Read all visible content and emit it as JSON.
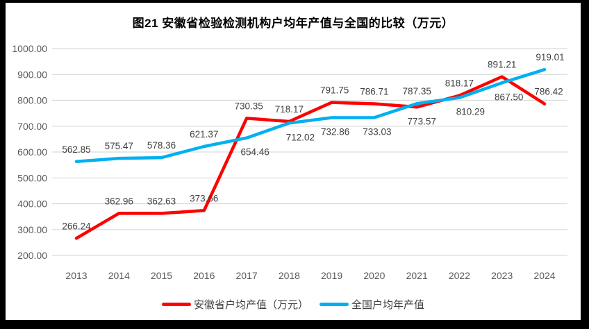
{
  "title": "图21 安徽省检验检测机构户均年产值与全国的比较（万元）",
  "colors": {
    "anhui_series": "#FF0000",
    "national_series": "#00B0F0",
    "gridline": "#D9D9D9",
    "data_label_text": "#404040",
    "axis_text": "#595959",
    "title_text": "#000000",
    "frame": "#000000",
    "background": "#FFFFFF"
  },
  "chart_data": {
    "type": "line",
    "title": "图21 安徽省检验检测机构户均年产值与全国的比较（万元）",
    "xlabel": "",
    "ylabel": "",
    "categories": [
      "2013",
      "2014",
      "2015",
      "2016",
      "2017",
      "2018",
      "2019",
      "2020",
      "2021",
      "2022",
      "2023",
      "2024"
    ],
    "series": [
      {
        "name": "安徽省户均产值（万元）",
        "color": "#FF0000",
        "values": [
          266.24,
          362.96,
          362.63,
          373.66,
          730.35,
          718.17,
          791.75,
          786.71,
          773.57,
          818.17,
          891.21,
          786.42
        ],
        "label_side": [
          "above",
          "above",
          "above",
          "above",
          "above",
          "above",
          "above",
          "above",
          "below",
          "above",
          "above",
          "above"
        ],
        "label_dx": [
          0,
          0,
          0,
          0,
          3,
          0,
          4,
          0,
          7,
          0,
          0,
          6
        ]
      },
      {
        "name": "全国户均年产值",
        "color": "#00B0F0",
        "values": [
          562.85,
          575.47,
          578.36,
          621.37,
          654.46,
          712.02,
          732.86,
          733.03,
          787.35,
          810.29,
          867.5,
          919.01
        ],
        "label_side": [
          "above",
          "above",
          "above",
          "above",
          "below",
          "below",
          "below",
          "below",
          "above",
          "below",
          "below",
          "above"
        ],
        "label_dx": [
          0,
          0,
          0,
          0,
          12,
          16,
          5,
          4,
          0,
          16,
          10,
          8
        ]
      }
    ],
    "ylim": [
      200,
      1000
    ],
    "ytick_step": 100,
    "ytick_labels": [
      "200.00",
      "300.00",
      "400.00",
      "500.00",
      "600.00",
      "700.00",
      "800.00",
      "900.00",
      "1000.00"
    ],
    "value_format_decimals": 2,
    "grid": "horizontal-only",
    "legend_position": "bottom"
  }
}
